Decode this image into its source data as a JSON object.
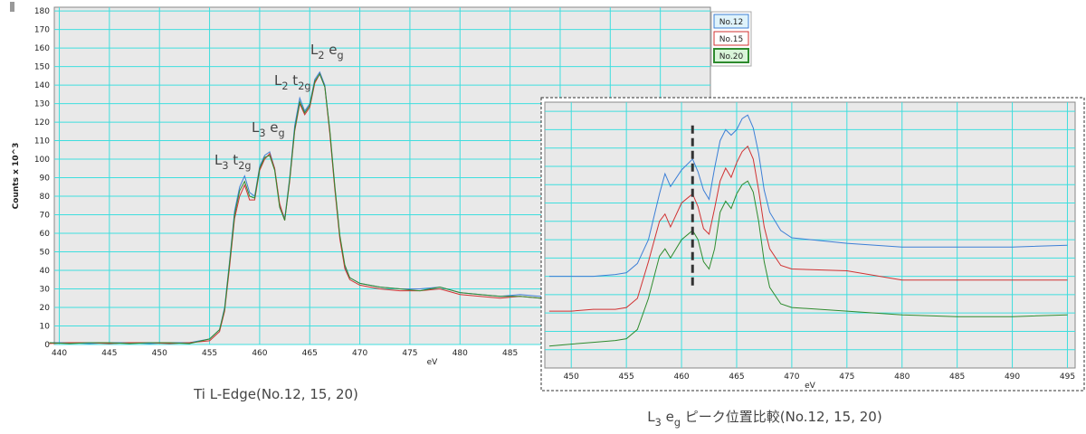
{
  "chart_data": [
    {
      "type": "line",
      "title": "Ti L-Edge(No.12, 15, 20)",
      "y_label": "Counts x 10^3",
      "x_label": "eV",
      "x": [
        439,
        441,
        443,
        445,
        447,
        449,
        451,
        453,
        455,
        456,
        456.5,
        457,
        457.5,
        458,
        458.5,
        459,
        459.5,
        460,
        460.5,
        461,
        461.5,
        462,
        462.5,
        463,
        463.5,
        464,
        464.5,
        465,
        465.5,
        466,
        466.5,
        467,
        467.5,
        468,
        468.5,
        469,
        470,
        472,
        474,
        476,
        478,
        480,
        482,
        484,
        486,
        488,
        489
      ],
      "series": [
        {
          "name": "No.12",
          "color": "#3d7fd6",
          "values": [
            1,
            1,
            0.5,
            1,
            1,
            0.5,
            1,
            1,
            3,
            8,
            20,
            45,
            72,
            85,
            91,
            82,
            80,
            96,
            102,
            104,
            95,
            75,
            68,
            90,
            118,
            133,
            126,
            130,
            143,
            147,
            140,
            115,
            85,
            58,
            42,
            36,
            33,
            31,
            30,
            30,
            31,
            28,
            27,
            26,
            27,
            26,
            26
          ]
        },
        {
          "name": "No.15",
          "color": "#d03232",
          "values": [
            0.5,
            1,
            1,
            0.5,
            1,
            1,
            0.5,
            1,
            2,
            7,
            18,
            42,
            68,
            80,
            86,
            78,
            78,
            94,
            100,
            103,
            95,
            76,
            67,
            88,
            115,
            130,
            124,
            128,
            141,
            146,
            139,
            114,
            84,
            57,
            41,
            35,
            32,
            30,
            29,
            29,
            30,
            27,
            26,
            25,
            26,
            25,
            25
          ]
        },
        {
          "name": "No.20",
          "color": "#2e8b2e",
          "values": [
            1,
            0.5,
            1,
            1,
            0.5,
            1,
            1,
            0.5,
            3,
            8,
            19,
            44,
            70,
            83,
            88,
            80,
            79,
            95,
            101,
            102,
            94,
            74,
            67,
            89,
            116,
            131,
            125,
            129,
            142,
            146,
            139,
            116,
            86,
            59,
            43,
            36,
            33,
            31,
            30,
            29,
            31,
            28,
            27,
            26,
            26,
            25,
            25
          ]
        }
      ],
      "xlim": [
        439.5,
        505
      ],
      "ylim": [
        0,
        182
      ],
      "xticks": [
        440,
        445,
        450,
        455,
        460,
        465,
        470,
        475,
        480,
        485
      ],
      "xgrid": [
        490,
        495,
        500
      ],
      "yticks": [
        0,
        10,
        20,
        30,
        40,
        50,
        60,
        70,
        80,
        90,
        100,
        110,
        120,
        130,
        140,
        150,
        160,
        170,
        180
      ],
      "grid": true,
      "annotations": [
        [
          "L",
          "3",
          " t",
          "2g"
        ],
        [
          "L",
          "3",
          " e",
          "g"
        ],
        [
          "L",
          "2",
          " t",
          "2g"
        ],
        [
          "L",
          "2",
          " e",
          "g"
        ]
      ]
    },
    {
      "type": "line",
      "title": [
        "L",
        "3",
        " e",
        "g",
        " ピーク位置比較(No.12, 15, 20)"
      ],
      "x_label": "eV",
      "x": [
        448,
        450,
        452,
        454,
        455,
        456,
        457,
        458,
        458.5,
        459,
        460,
        461,
        461.5,
        462,
        462.5,
        463,
        463.5,
        464,
        464.5,
        465,
        465.5,
        466,
        466.5,
        467,
        467.5,
        468,
        469,
        470,
        475,
        480,
        485,
        490,
        495
      ],
      "series": [
        {
          "color": "#3d7fd6",
          "values": [
            50,
            50,
            50,
            51,
            52,
            57,
            70,
            95,
            106,
            99,
            108,
            114,
            107,
            97,
            92,
            109,
            124,
            130,
            127,
            130,
            136,
            138,
            131,
            117,
            97,
            85,
            75,
            71,
            68,
            66,
            66,
            66,
            67
          ]
        },
        {
          "color": "#d03232",
          "values": [
            31,
            31,
            32,
            32,
            33,
            38,
            58,
            80,
            84,
            77,
            90,
            95,
            88,
            76,
            73,
            87,
            102,
            109,
            104,
            112,
            118,
            121,
            114,
            97,
            77,
            65,
            56,
            54,
            53,
            48,
            48,
            48,
            48
          ]
        },
        {
          "color": "#2e8b2e",
          "values": [
            12,
            13,
            14,
            15,
            16,
            21,
            38,
            61,
            65,
            60,
            70,
            75,
            70,
            58,
            54,
            65,
            85,
            91,
            87,
            95,
            100,
            102,
            96,
            80,
            58,
            44,
            35,
            33,
            31,
            29,
            28,
            28,
            29
          ]
        }
      ],
      "xlim": [
        447.6,
        495.7
      ],
      "ylim": [
        0,
        145
      ],
      "xticks": [
        450,
        455,
        460,
        465,
        470,
        475,
        480,
        485,
        490,
        495
      ],
      "ygrid": [
        10,
        20,
        30,
        40,
        50,
        60,
        70,
        80,
        90,
        100,
        110,
        120,
        130,
        140
      ],
      "grid": true,
      "reference_line": {
        "x": 461,
        "y": [
          45,
          133
        ]
      }
    }
  ]
}
